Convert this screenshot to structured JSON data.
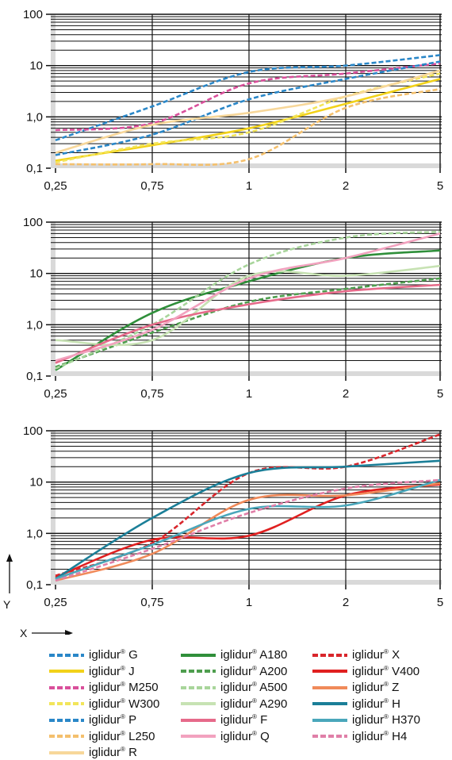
{
  "chart_data": [
    {
      "type": "line",
      "x_scale": "categorical",
      "y_scale": "log",
      "x_ticks": [
        "0,25",
        "0,75",
        "1",
        "2",
        "5"
      ],
      "y_ticks": [
        "100",
        "10",
        "1,0",
        "0,1"
      ],
      "y_tick_values": [
        100,
        10,
        1,
        0.1
      ],
      "ylim": [
        0.1,
        100
      ],
      "grid": true,
      "series": [
        {
          "name": "G",
          "color": "#2a87c8",
          "dash": true,
          "values": [
            0.35,
            1.6,
            7.5,
            10.0,
            16.0
          ]
        },
        {
          "name": "J",
          "color": "#f2d21a",
          "dash": false,
          "values": [
            0.14,
            0.28,
            0.6,
            1.8,
            5.5
          ]
        },
        {
          "name": "M250",
          "color": "#d94f9b",
          "dash": true,
          "values": [
            0.55,
            0.75,
            4.5,
            7.0,
            11.0
          ]
        },
        {
          "name": "W300",
          "color": "#f2e55a",
          "dash": true,
          "values": [
            0.13,
            0.3,
            0.5,
            2.5,
            7.0
          ]
        },
        {
          "name": "P",
          "color": "#2a87c8",
          "dash": true,
          "values": [
            0.18,
            0.45,
            2.2,
            5.5,
            12.0
          ]
        },
        {
          "name": "L250",
          "color": "#f4c06d",
          "dash": true,
          "values": [
            0.12,
            0.12,
            0.15,
            1.5,
            3.5
          ]
        },
        {
          "name": "R",
          "color": "#f7d79a",
          "dash": false,
          "values": [
            0.2,
            0.7,
            1.2,
            2.5,
            8.0
          ]
        }
      ]
    },
    {
      "type": "line",
      "x_scale": "categorical",
      "y_scale": "log",
      "x_ticks": [
        "0,25",
        "0,75",
        "1",
        "2",
        "5"
      ],
      "y_ticks": [
        "100",
        "10",
        "1,0",
        "0,1"
      ],
      "y_tick_values": [
        100,
        10,
        1,
        0.1
      ],
      "ylim": [
        0.1,
        100
      ],
      "grid": true,
      "series": [
        {
          "name": "A180",
          "color": "#2f8f3a",
          "dash": false,
          "values": [
            0.13,
            1.7,
            7.0,
            20.0,
            28.0
          ]
        },
        {
          "name": "A200",
          "color": "#4e9e4e",
          "dash": true,
          "values": [
            0.15,
            0.7,
            2.8,
            5.0,
            8.0
          ]
        },
        {
          "name": "A500",
          "color": "#a8d59b",
          "dash": true,
          "values": [
            0.14,
            1.0,
            15.0,
            50.0,
            65.0
          ]
        },
        {
          "name": "A290",
          "color": "#c7e2b3",
          "dash": false,
          "values": [
            0.5,
            0.5,
            9.0,
            9.0,
            14.0
          ]
        },
        {
          "name": "F",
          "color": "#e66a8a",
          "dash": false,
          "values": [
            0.18,
            1.0,
            2.5,
            4.5,
            6.0
          ]
        },
        {
          "name": "Q",
          "color": "#f2a2bf",
          "dash": false,
          "values": [
            0.2,
            0.8,
            8.0,
            20.0,
            60.0
          ]
        }
      ]
    },
    {
      "type": "line",
      "x_scale": "categorical",
      "y_scale": "log",
      "x_ticks": [
        "0,25",
        "0,75",
        "1",
        "2",
        "5"
      ],
      "y_ticks": [
        "100",
        "10",
        "1,0",
        "0,1"
      ],
      "y_tick_values": [
        100,
        10,
        1,
        0.1
      ],
      "ylim": [
        0.1,
        100
      ],
      "grid": true,
      "series": [
        {
          "name": "X",
          "color": "#d9262c",
          "dash": true,
          "values": [
            0.15,
            0.65,
            15.0,
            20.0,
            85.0
          ]
        },
        {
          "name": "V400",
          "color": "#e02020",
          "dash": false,
          "values": [
            0.14,
            0.75,
            0.9,
            5.5,
            9.0
          ]
        },
        {
          "name": "Z",
          "color": "#f08a5a",
          "dash": false,
          "values": [
            0.12,
            0.4,
            4.5,
            5.5,
            9.5
          ]
        },
        {
          "name": "H",
          "color": "#1b7f98",
          "dash": false,
          "values": [
            0.13,
            2.0,
            15.0,
            20.0,
            26.0
          ]
        },
        {
          "name": "H370",
          "color": "#4aa7bb",
          "dash": false,
          "values": [
            0.13,
            0.6,
            3.0,
            3.5,
            11.0
          ]
        },
        {
          "name": "H4",
          "color": "#e07fa8",
          "dash": true,
          "values": [
            0.12,
            0.5,
            2.5,
            7.5,
            11.0
          ]
        }
      ]
    }
  ],
  "axis_labels": {
    "x": "X",
    "y": "Y"
  },
  "legend": {
    "brand": "iglidur",
    "mark": "®",
    "columns": [
      [
        {
          "name": "G",
          "color": "#2a87c8",
          "dash": true
        },
        {
          "name": "J",
          "color": "#f2d21a",
          "dash": false
        },
        {
          "name": "M250",
          "color": "#d94f9b",
          "dash": true
        },
        {
          "name": "W300",
          "color": "#f2e55a",
          "dash": true
        },
        {
          "name": "P",
          "color": "#2a87c8",
          "dash": true
        },
        {
          "name": "L250",
          "color": "#f4c06d",
          "dash": true
        },
        {
          "name": "R",
          "color": "#f7d79a",
          "dash": false
        }
      ],
      [
        {
          "name": "A180",
          "color": "#2f8f3a",
          "dash": false
        },
        {
          "name": "A200",
          "color": "#4e9e4e",
          "dash": true
        },
        {
          "name": "A500",
          "color": "#a8d59b",
          "dash": true
        },
        {
          "name": "A290",
          "color": "#c7e2b3",
          "dash": false
        },
        {
          "name": "F",
          "color": "#e66a8a",
          "dash": false
        },
        {
          "name": "Q",
          "color": "#f2a2bf",
          "dash": false
        }
      ],
      [
        {
          "name": "X",
          "color": "#d9262c",
          "dash": true
        },
        {
          "name": "V400",
          "color": "#e02020",
          "dash": false
        },
        {
          "name": "Z",
          "color": "#f08a5a",
          "dash": false
        },
        {
          "name": "H",
          "color": "#1b7f98",
          "dash": false
        },
        {
          "name": "H370",
          "color": "#4aa7bb",
          "dash": false
        },
        {
          "name": "H4",
          "color": "#e07fa8",
          "dash": true
        }
      ]
    ]
  }
}
